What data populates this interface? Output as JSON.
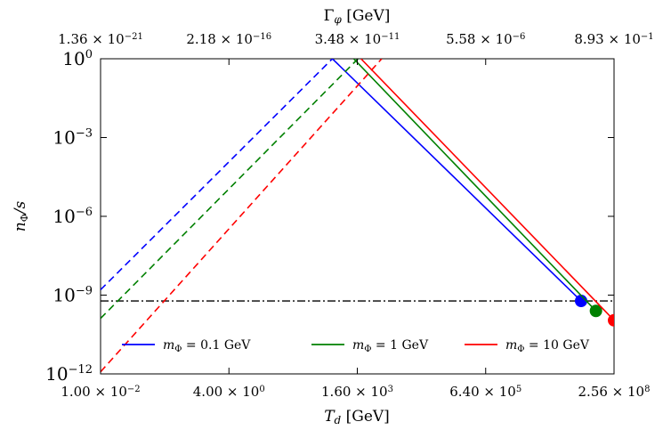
{
  "chart_data": {
    "type": "line",
    "title": "",
    "xlabel": "T_d [GeV]",
    "xlabel_parts": {
      "main": "T",
      "sub": "d",
      "unit": " [GeV]"
    },
    "ylabel": "n_Φ/s",
    "ylabel_parts": {
      "n": "n",
      "sub": "Φ",
      "rest": "/s"
    },
    "top_xlabel": "Γ_φ [GeV]",
    "top_xlabel_parts": {
      "main": "Γ",
      "sub": "φ",
      "unit": " [GeV]"
    },
    "x_scale": "log",
    "y_scale": "log",
    "xlim": [
      0.01,
      256000000
    ],
    "ylim": [
      1e-12,
      1
    ],
    "x_ticks": [
      {
        "value": 0.01,
        "mant": "1.00 × 10",
        "exp": "−2"
      },
      {
        "value": 4.0,
        "mant": "4.00 × 10",
        "exp": "0"
      },
      {
        "value": 1600,
        "mant": "1.60 × 10",
        "exp": "3"
      },
      {
        "value": 640000,
        "mant": "6.40 × 10",
        "exp": "5"
      },
      {
        "value": 256000000,
        "mant": "2.56 × 10",
        "exp": "8"
      }
    ],
    "top_ticks": [
      {
        "x": 0.01,
        "mant": "1.36 × 10",
        "exp": "−21"
      },
      {
        "x": 4.0,
        "mant": "2.18 × 10",
        "exp": "−16"
      },
      {
        "x": 1600,
        "mant": "3.48 × 10",
        "exp": "−11"
      },
      {
        "x": 640000,
        "mant": "5.58 × 10",
        "exp": "−6"
      },
      {
        "x": 256000000,
        "mant": "8.93 × 10",
        "exp": "−1"
      }
    ],
    "y_ticks": [
      {
        "value": 1e-12,
        "base": "10",
        "exp": "−12"
      },
      {
        "value": 1e-09,
        "base": "10",
        "exp": "−9"
      },
      {
        "value": 1e-06,
        "base": "10",
        "exp": "−6"
      },
      {
        "value": 0.001,
        "base": "10",
        "exp": "−3"
      },
      {
        "value": 1,
        "base": "10",
        "exp": "0"
      }
    ],
    "reference_line": {
      "y": 6e-10,
      "style": "dash-dot",
      "color": "#000000"
    },
    "series": [
      {
        "name": "m_Φ = 0.1 GeV",
        "label_parts": {
          "m": "m",
          "sub": "Φ",
          "rest": " = 0.1 GeV"
        },
        "color": "#0000ff",
        "dashed": {
          "x": [
            0.01,
            500
          ],
          "y": [
            1.6e-09,
            1
          ]
        },
        "solid": {
          "x": [
            500,
            55000000
          ],
          "y": [
            1,
            6e-10
          ]
        },
        "endpoint": {
          "x": 55000000,
          "y": 6e-10
        }
      },
      {
        "name": "m_Φ = 1 GeV",
        "label_parts": {
          "m": "m",
          "sub": "Φ",
          "rest": " = 1 GeV"
        },
        "color": "#008000",
        "dashed": {
          "x": [
            0.01,
            1650
          ],
          "y": [
            1.3e-10,
            1
          ]
        },
        "solid": {
          "x": [
            1350,
            110000000
          ],
          "y": [
            1,
            2.5e-10
          ]
        },
        "endpoint": {
          "x": 110000000,
          "y": 2.5e-10
        }
      },
      {
        "name": "m_Φ = 10 GeV",
        "label_parts": {
          "m": "m",
          "sub": "Φ",
          "rest": " = 10 GeV"
        },
        "color": "#ff0000",
        "dashed": {
          "x": [
            0.01,
            5000
          ],
          "y": [
            1.2e-12,
            1
          ]
        },
        "solid": {
          "x": [
            1900,
            256000000
          ],
          "y": [
            1,
            1.1e-10
          ]
        },
        "endpoint": {
          "x": 256000000,
          "y": 1.1e-10
        }
      }
    ],
    "legend": {
      "position": "lower-center",
      "columns": 3,
      "frameless": true
    }
  }
}
